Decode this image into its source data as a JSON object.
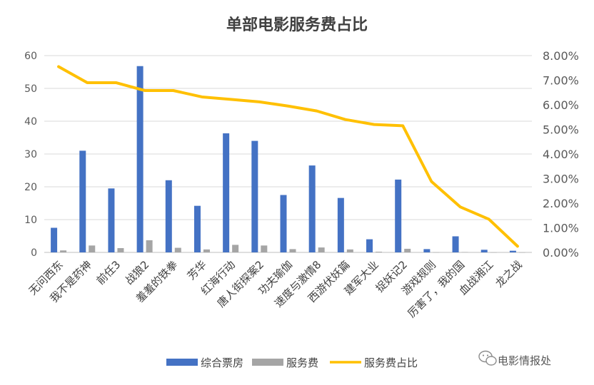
{
  "chart_data": {
    "type": "bar",
    "title": "单部电影服务费占比",
    "categories": [
      "无问西东",
      "我不是药神",
      "前任3",
      "战狼2",
      "羞羞的铁拳",
      "芳华",
      "红海行动",
      "唐人街探案2",
      "功夫瑜伽",
      "速度与激情8",
      "西游伏妖篇",
      "建军大业",
      "捉妖记2",
      "游戏规则",
      "厉害了，我的国",
      "血战湘江",
      "龙之战"
    ],
    "series": [
      {
        "name": "综合票房",
        "kind": "bar",
        "axis": "left",
        "color": "#4472C4",
        "values": [
          7.5,
          31,
          19.5,
          56.8,
          22,
          14.2,
          36.3,
          34,
          17.5,
          26.5,
          16.6,
          4,
          22.2,
          1,
          4.9,
          0.8,
          0.5
        ]
      },
      {
        "name": "服务费",
        "kind": "bar",
        "axis": "left",
        "color": "#A5A5A5",
        "values": [
          0.6,
          2.1,
          1.3,
          3.7,
          1.4,
          0.9,
          2.3,
          2.1,
          1.0,
          1.5,
          0.9,
          0.2,
          1.1,
          0.03,
          0.1,
          0.01,
          0.002
        ]
      },
      {
        "name": "服务费占比",
        "kind": "line",
        "axis": "right",
        "color": "#FFC000",
        "values": [
          0.0755,
          0.069,
          0.069,
          0.0658,
          0.0658,
          0.0632,
          0.0622,
          0.0612,
          0.0595,
          0.0575,
          0.054,
          0.052,
          0.0515,
          0.0288,
          0.0185,
          0.0135,
          0.0025
        ]
      }
    ],
    "y_left": {
      "ylim": [
        0,
        60
      ],
      "ticks": [
        "0",
        "10",
        "20",
        "30",
        "40",
        "50",
        "60"
      ]
    },
    "y_right": {
      "ylim": [
        0,
        0.08
      ],
      "ticks": [
        "0.00%",
        "1.00%",
        "2.00%",
        "3.00%",
        "4.00%",
        "5.00%",
        "6.00%",
        "7.00%",
        "8.00%"
      ]
    },
    "grid": true,
    "legend_position": "bottom"
  },
  "watermark": {
    "text": "电影情报处",
    "icon": "wechat-icon"
  }
}
